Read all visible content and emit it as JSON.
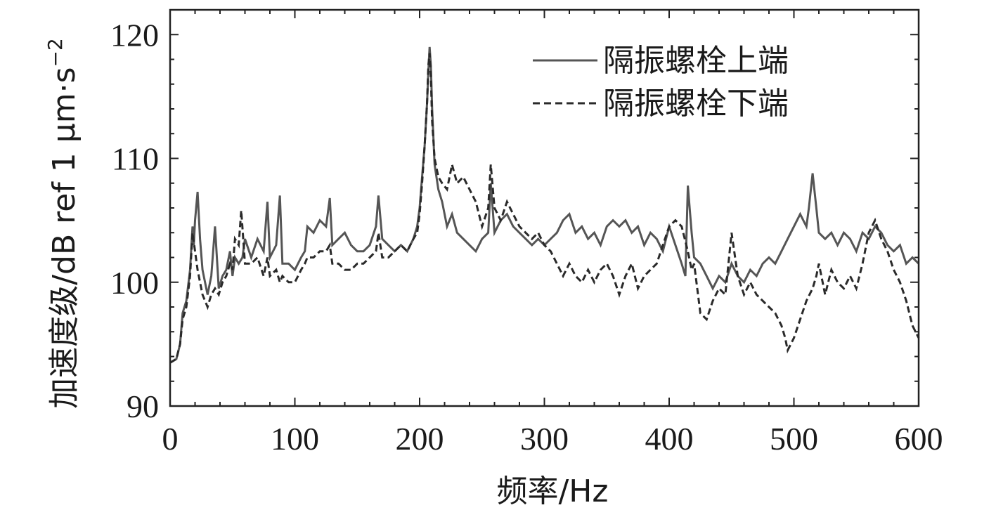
{
  "chart_data": {
    "type": "line",
    "xlabel": "频率/Hz",
    "ylabel": "加速度级/dB ref 1 μm·s",
    "ylabel_sup": "−2",
    "xlim": [
      0,
      600
    ],
    "ylim": [
      90,
      122
    ],
    "xticks": [
      0,
      100,
      200,
      300,
      400,
      500,
      600
    ],
    "yticks": [
      90,
      100,
      110,
      120
    ],
    "grid": false,
    "legend_position": "top-right",
    "series": [
      {
        "name": "隔振螺栓上端",
        "style": "solid",
        "color": "#555555",
        "x": [
          0,
          5,
          8,
          10,
          13,
          16,
          18,
          19,
          20,
          22,
          24,
          26,
          28,
          30,
          33,
          36,
          39,
          42,
          45,
          48,
          50,
          52,
          55,
          58,
          60,
          65,
          70,
          75,
          78,
          80,
          85,
          88,
          90,
          95,
          100,
          105,
          108,
          110,
          115,
          120,
          125,
          128,
          130,
          135,
          140,
          145,
          150,
          155,
          160,
          165,
          167,
          170,
          175,
          180,
          185,
          190,
          195,
          198,
          200,
          202,
          204,
          206,
          207,
          208,
          209,
          210,
          212,
          215,
          218,
          222,
          226,
          230,
          235,
          240,
          245,
          250,
          255,
          257,
          260,
          265,
          270,
          275,
          280,
          285,
          290,
          295,
          300,
          305,
          310,
          315,
          320,
          325,
          330,
          335,
          340,
          345,
          350,
          355,
          360,
          365,
          370,
          375,
          380,
          385,
          390,
          395,
          400,
          405,
          410,
          413,
          415,
          418,
          420,
          425,
          430,
          435,
          440,
          445,
          450,
          455,
          460,
          465,
          470,
          475,
          480,
          485,
          490,
          495,
          500,
          505,
          510,
          512,
          515,
          518,
          520,
          525,
          530,
          535,
          540,
          545,
          550,
          555,
          560,
          565,
          570,
          575,
          580,
          585,
          590,
          595,
          600
        ],
        "y": [
          93.5,
          93.8,
          95.0,
          97.5,
          98.5,
          101.0,
          104.5,
          103.0,
          105.0,
          107.3,
          103.5,
          101.0,
          100.0,
          99.0,
          100.5,
          104.5,
          99.5,
          100.5,
          101.0,
          102.5,
          100.5,
          102.0,
          101.5,
          102.0,
          103.5,
          102.0,
          103.5,
          102.5,
          106.5,
          102.0,
          103.0,
          107.0,
          101.5,
          101.5,
          101.0,
          102.0,
          102.5,
          104.5,
          104.0,
          105.0,
          104.5,
          106.8,
          103.0,
          103.5,
          104.0,
          103.0,
          102.5,
          102.5,
          103.0,
          104.5,
          107.0,
          103.5,
          103.0,
          102.5,
          103.0,
          102.5,
          103.5,
          104.5,
          106.0,
          108.5,
          111.0,
          114.5,
          117.0,
          119.0,
          117.5,
          114.0,
          109.5,
          107.5,
          106.5,
          104.5,
          105.5,
          104.0,
          103.5,
          103.0,
          102.5,
          103.5,
          104.0,
          108.0,
          104.0,
          105.0,
          105.5,
          104.5,
          104.0,
          103.5,
          103.0,
          103.5,
          103.0,
          103.5,
          104.0,
          105.0,
          105.5,
          104.0,
          104.5,
          103.5,
          104.0,
          103.0,
          104.5,
          105.0,
          104.5,
          105.0,
          104.0,
          104.5,
          103.0,
          104.0,
          103.5,
          102.5,
          104.5,
          103.0,
          101.5,
          100.5,
          107.8,
          104.0,
          102.0,
          101.5,
          100.5,
          99.5,
          100.5,
          100.0,
          101.5,
          100.5,
          100.0,
          101.0,
          100.5,
          101.5,
          102.0,
          101.5,
          102.5,
          103.5,
          104.5,
          105.5,
          104.5,
          106.0,
          108.8,
          106.0,
          104.0,
          103.5,
          104.0,
          103.0,
          104.0,
          103.5,
          102.5,
          104.0,
          103.5,
          104.5,
          104.0,
          103.0,
          102.5,
          103.0,
          101.5,
          102.0,
          101.5
        ]
      },
      {
        "name": "隔振螺栓下端",
        "style": "dashed",
        "color": "#2a2a2a",
        "x": [
          0,
          5,
          8,
          10,
          13,
          16,
          18,
          20,
          22,
          24,
          26,
          28,
          30,
          33,
          36,
          39,
          42,
          45,
          48,
          50,
          52,
          55,
          57,
          60,
          65,
          70,
          75,
          78,
          80,
          85,
          88,
          90,
          95,
          100,
          105,
          108,
          110,
          115,
          120,
          125,
          128,
          130,
          135,
          140,
          145,
          150,
          155,
          160,
          165,
          167,
          170,
          175,
          180,
          185,
          190,
          195,
          198,
          200,
          202,
          204,
          206,
          207,
          208,
          209,
          210,
          212,
          215,
          218,
          222,
          226,
          230,
          235,
          240,
          245,
          250,
          255,
          257,
          260,
          265,
          270,
          275,
          280,
          285,
          290,
          295,
          300,
          305,
          310,
          315,
          320,
          325,
          330,
          335,
          340,
          345,
          350,
          355,
          360,
          365,
          370,
          375,
          380,
          385,
          390,
          395,
          400,
          405,
          410,
          415,
          418,
          420,
          425,
          430,
          435,
          440,
          445,
          450,
          455,
          460,
          465,
          470,
          475,
          480,
          485,
          490,
          493,
          495,
          500,
          505,
          510,
          515,
          518,
          520,
          525,
          530,
          535,
          540,
          545,
          550,
          555,
          560,
          565,
          570,
          575,
          580,
          585,
          590,
          595,
          600
        ],
        "y": [
          93.5,
          93.8,
          95.0,
          97.0,
          98.0,
          100.5,
          104.0,
          102.5,
          101.0,
          100.0,
          99.0,
          98.5,
          98.0,
          99.0,
          99.5,
          99.0,
          100.0,
          100.5,
          101.5,
          101.0,
          103.5,
          103.0,
          105.8,
          101.5,
          101.5,
          102.0,
          100.5,
          102.0,
          100.5,
          101.0,
          100.0,
          100.5,
          100.0,
          100.0,
          101.0,
          101.5,
          102.0,
          102.0,
          102.5,
          102.5,
          103.0,
          101.5,
          101.5,
          101.0,
          101.0,
          101.5,
          101.5,
          102.0,
          102.5,
          104.0,
          102.0,
          102.0,
          102.5,
          103.0,
          102.5,
          103.5,
          104.0,
          105.5,
          108.0,
          111.0,
          114.5,
          117.5,
          118.5,
          116.5,
          113.0,
          110.0,
          108.5,
          108.0,
          107.5,
          109.5,
          108.0,
          108.5,
          107.5,
          106.5,
          104.5,
          106.0,
          109.5,
          106.0,
          105.0,
          106.5,
          105.5,
          104.5,
          104.0,
          103.5,
          104.0,
          103.0,
          102.5,
          101.5,
          100.5,
          101.5,
          100.5,
          100.0,
          101.0,
          100.0,
          101.0,
          101.5,
          100.5,
          99.0,
          100.5,
          101.5,
          99.5,
          100.5,
          101.0,
          101.5,
          103.0,
          104.5,
          105.0,
          104.5,
          102.5,
          101.0,
          101.5,
          97.5,
          97.0,
          98.5,
          99.5,
          99.0,
          104.0,
          100.5,
          99.0,
          100.0,
          99.0,
          98.5,
          98.0,
          97.5,
          96.5,
          95.5,
          94.5,
          95.5,
          97.0,
          98.5,
          99.5,
          100.5,
          101.5,
          99.0,
          101.0,
          100.0,
          99.5,
          100.5,
          99.5,
          101.5,
          104.0,
          105.0,
          103.5,
          102.5,
          101.0,
          100.0,
          98.5,
          96.5,
          95.5
        ]
      }
    ]
  }
}
